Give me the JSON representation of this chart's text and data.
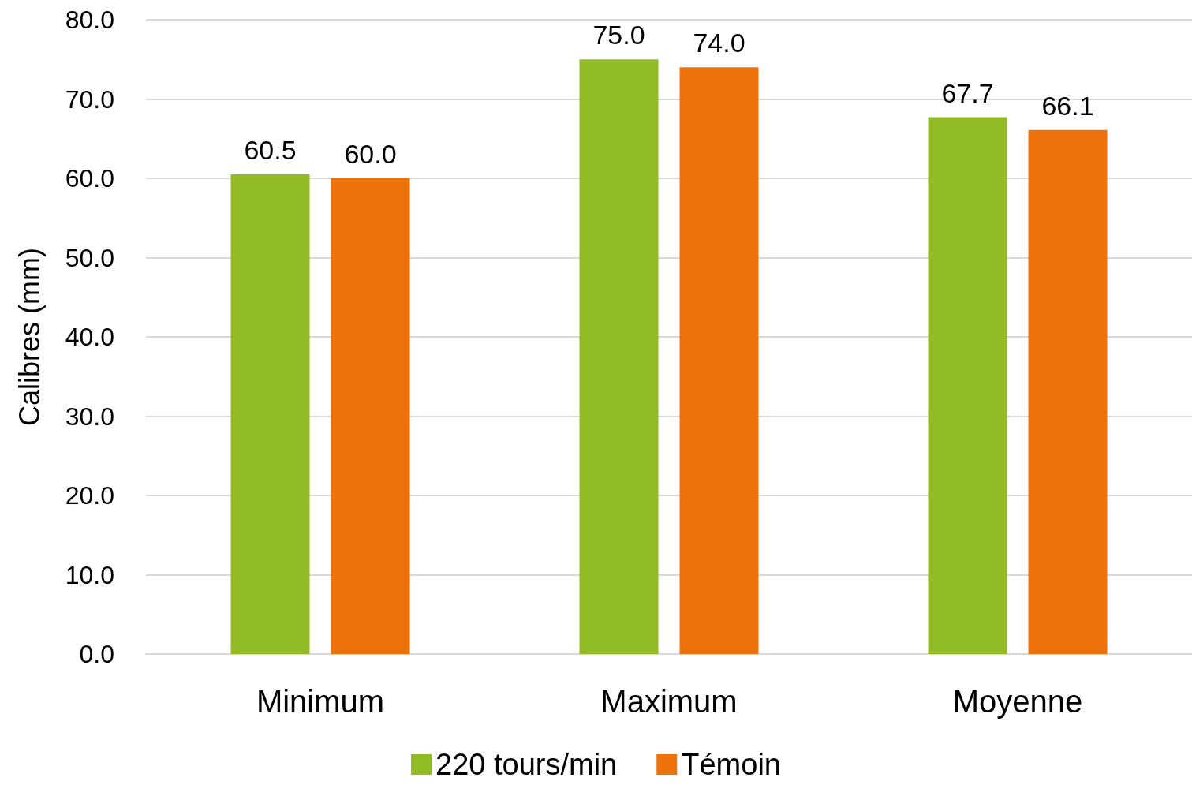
{
  "chart_data": {
    "type": "bar",
    "ylabel": "Calibres (mm)",
    "categories": [
      "Minimum",
      "Maximum",
      "Moyenne"
    ],
    "series": [
      {
        "name": "220 tours/min",
        "color": "#92bc25",
        "values": [
          60.5,
          75.0,
          67.7
        ],
        "value_labels": [
          "60.5",
          "75.0",
          "67.7"
        ]
      },
      {
        "name": "Témoin",
        "color": "#ee720c",
        "values": [
          60.0,
          74.0,
          66.1
        ],
        "value_labels": [
          "60.0",
          "74.0",
          "66.1"
        ]
      }
    ],
    "ylim": [
      0,
      80
    ],
    "yticks": [
      {
        "value": 0,
        "label": "0.0"
      },
      {
        "value": 10,
        "label": "10.0"
      },
      {
        "value": 20,
        "label": "20.0"
      },
      {
        "value": 30,
        "label": "30.0"
      },
      {
        "value": 40,
        "label": "40.0"
      },
      {
        "value": 50,
        "label": "50.0"
      },
      {
        "value": 60,
        "label": "60.0"
      },
      {
        "value": 70,
        "label": "70.0"
      },
      {
        "value": 80,
        "label": "80.0"
      }
    ],
    "grid": "y",
    "legend": "bottom"
  }
}
